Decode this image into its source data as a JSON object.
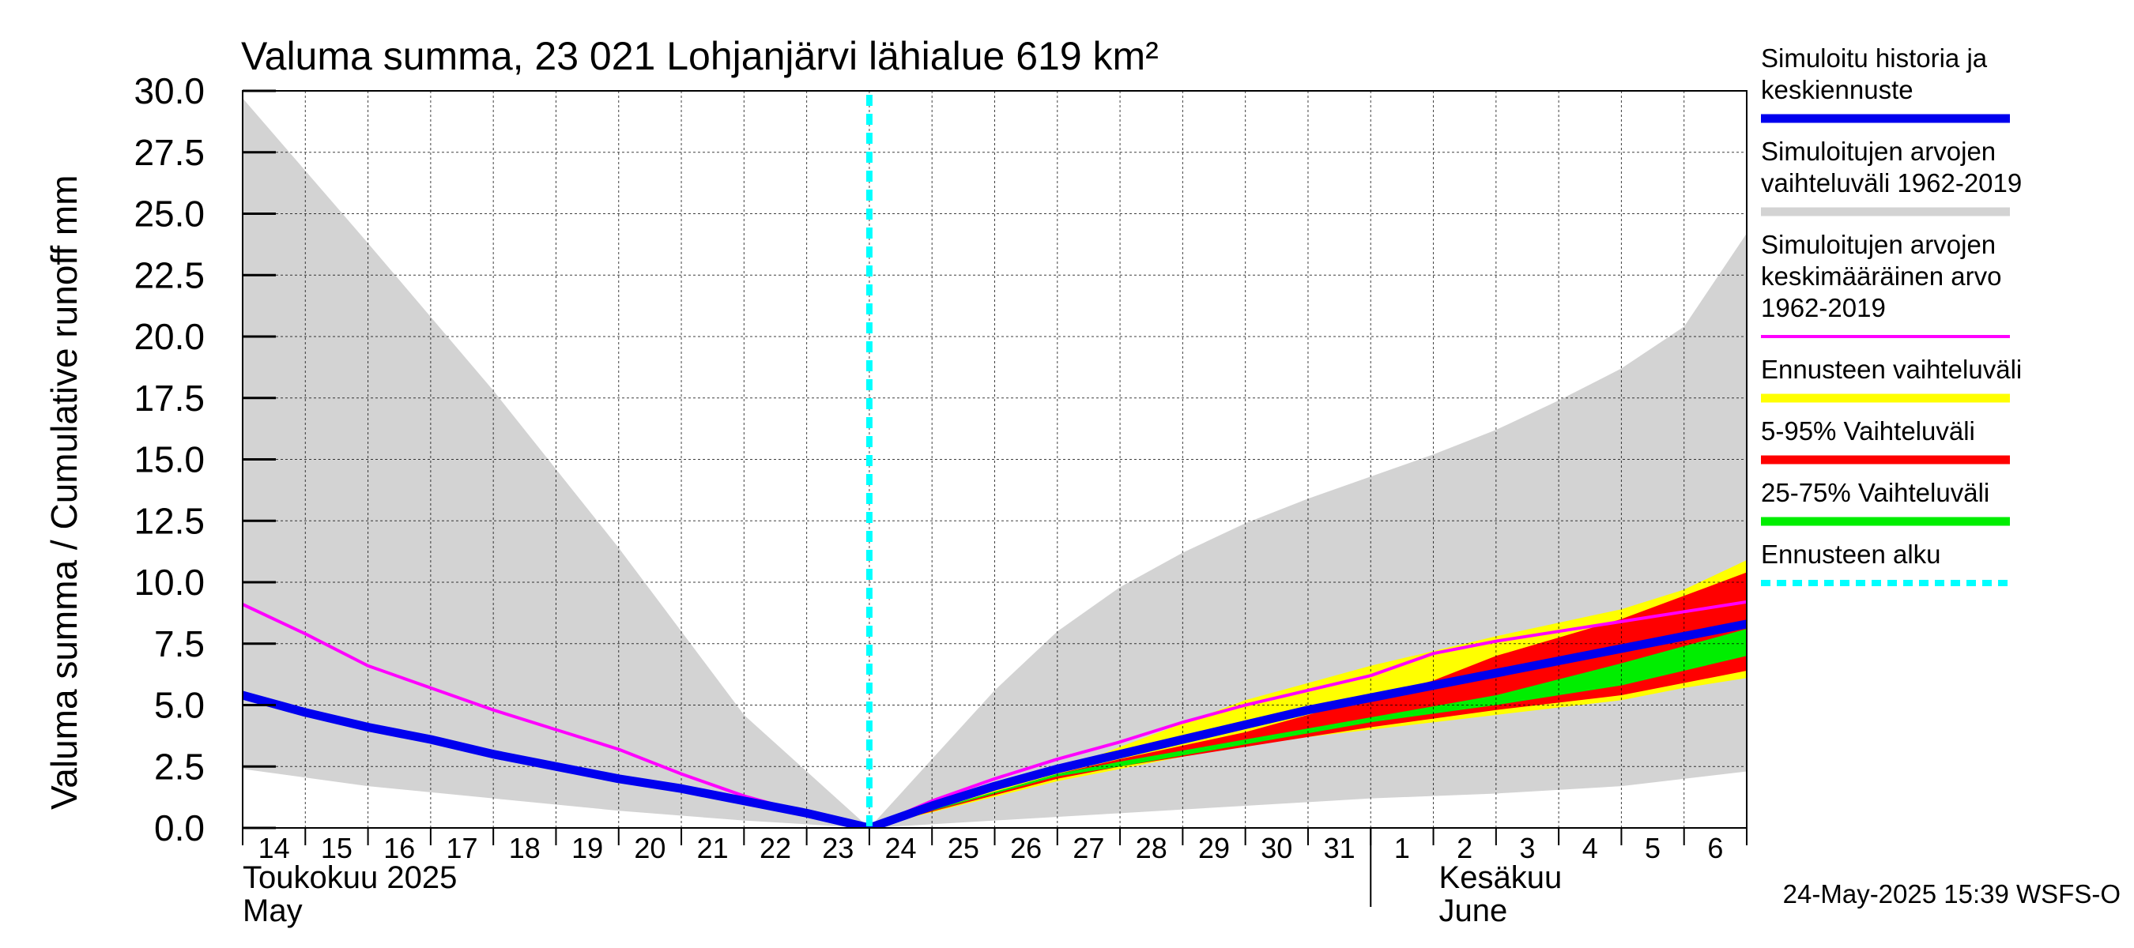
{
  "chart_data": {
    "type": "line",
    "title": "Valuma summa, 23 021 Lohjanjärvi lähialue 619 km²",
    "ylabel": "Valuma summa / Cumulative runoff    mm",
    "ylim": [
      0,
      30
    ],
    "yticks": [
      "0.0",
      "2.5",
      "5.0",
      "7.5",
      "10.0",
      "12.5",
      "15.0",
      "17.5",
      "20.0",
      "22.5",
      "25.0",
      "27.5",
      "30.0"
    ],
    "x_days": [
      "14",
      "15",
      "16",
      "17",
      "18",
      "19",
      "20",
      "21",
      "22",
      "23",
      "24",
      "25",
      "26",
      "27",
      "28",
      "29",
      "30",
      "31",
      "1",
      "2",
      "3",
      "4",
      "5",
      "6"
    ],
    "x_range": [
      0,
      24
    ],
    "month_labels": {
      "may_fi": "Toukokuu  2025",
      "may_en": "May",
      "june_fi": "Kesäkuu",
      "june_en": "June"
    },
    "forecast_start_x": 10,
    "series": [
      {
        "name": "Simuloitujen arvojen vaihteluväli 1962-2019",
        "color": "#d3d3d3",
        "upper": [
          [
            0,
            29.7
          ],
          [
            2,
            23.8
          ],
          [
            4,
            17.8
          ],
          [
            6,
            11.4
          ],
          [
            8,
            4.6
          ],
          [
            10,
            0
          ],
          [
            11,
            2.8
          ],
          [
            12,
            5.6
          ],
          [
            13,
            8.0
          ],
          [
            14,
            9.8
          ],
          [
            15,
            11.2
          ],
          [
            16,
            12.4
          ],
          [
            17,
            13.4
          ],
          [
            18,
            14.3
          ],
          [
            19,
            15.2
          ],
          [
            20,
            16.2
          ],
          [
            21,
            17.4
          ],
          [
            22,
            18.7
          ],
          [
            23,
            20.4
          ],
          [
            24,
            24.2
          ]
        ],
        "lower": [
          [
            0,
            2.4
          ],
          [
            2,
            1.7
          ],
          [
            4,
            1.2
          ],
          [
            6,
            0.7
          ],
          [
            8,
            0.3
          ],
          [
            10,
            0
          ],
          [
            12,
            0.3
          ],
          [
            14,
            0.6
          ],
          [
            16,
            0.9
          ],
          [
            18,
            1.2
          ],
          [
            20,
            1.4
          ],
          [
            22,
            1.7
          ],
          [
            24,
            2.3
          ]
        ]
      },
      {
        "name": "Ennusteen vaihteluväli",
        "color": "#ffff00",
        "upper": [
          [
            10,
            0
          ],
          [
            13,
            2.3
          ],
          [
            14,
            3.3
          ],
          [
            16,
            5.2
          ],
          [
            18,
            6.6
          ],
          [
            20,
            7.8
          ],
          [
            22,
            8.9
          ],
          [
            23,
            9.7
          ],
          [
            24,
            10.9
          ]
        ],
        "lower": [
          [
            10,
            0
          ],
          [
            13,
            1.9
          ],
          [
            14,
            2.4
          ],
          [
            16,
            3.4
          ],
          [
            18,
            4.0
          ],
          [
            20,
            4.6
          ],
          [
            22,
            5.2
          ],
          [
            23,
            5.7
          ],
          [
            24,
            6.1
          ]
        ]
      },
      {
        "name": "5-95% Vaihteluväli",
        "color": "#ff0000",
        "upper": [
          [
            10,
            0
          ],
          [
            13,
            2.2
          ],
          [
            14,
            2.8
          ],
          [
            16,
            3.9
          ],
          [
            18,
            5.3
          ],
          [
            19,
            6.0
          ],
          [
            20,
            7.0
          ],
          [
            22,
            8.5
          ],
          [
            24,
            10.4
          ]
        ],
        "lower": [
          [
            10,
            0
          ],
          [
            13,
            2.0
          ],
          [
            14,
            2.5
          ],
          [
            16,
            3.3
          ],
          [
            18,
            4.1
          ],
          [
            20,
            4.8
          ],
          [
            22,
            5.4
          ],
          [
            24,
            6.4
          ]
        ]
      },
      {
        "name": "25-75% Vaihteluväli",
        "color": "#00ee00",
        "upper": [
          [
            10,
            0
          ],
          [
            13,
            2.2
          ],
          [
            14,
            2.7
          ],
          [
            16,
            3.6
          ],
          [
            18,
            4.5
          ],
          [
            20,
            5.4
          ],
          [
            22,
            6.7
          ],
          [
            24,
            8.1
          ]
        ],
        "lower": [
          [
            10,
            0
          ],
          [
            13,
            2.1
          ],
          [
            14,
            2.5
          ],
          [
            16,
            3.4
          ],
          [
            18,
            4.3
          ],
          [
            20,
            5.0
          ],
          [
            22,
            5.8
          ],
          [
            24,
            7.0
          ]
        ]
      },
      {
        "name": "Simuloitujen arvojen keskimääräinen arvo 1962-2019",
        "color": "#ff00ff",
        "points": [
          [
            0,
            9.1
          ],
          [
            1,
            7.9
          ],
          [
            2,
            6.6
          ],
          [
            3,
            5.7
          ],
          [
            4,
            4.8
          ],
          [
            5,
            4.0
          ],
          [
            6,
            3.2
          ],
          [
            7,
            2.2
          ],
          [
            8,
            1.3
          ],
          [
            9,
            0.6
          ],
          [
            10,
            0
          ],
          [
            11,
            1.1
          ],
          [
            12,
            2.0
          ],
          [
            13,
            2.8
          ],
          [
            14,
            3.5
          ],
          [
            15,
            4.3
          ],
          [
            16,
            5.0
          ],
          [
            17,
            5.6
          ],
          [
            18,
            6.2
          ],
          [
            19,
            7.1
          ],
          [
            20,
            7.6
          ],
          [
            21,
            8.0
          ],
          [
            22,
            8.4
          ],
          [
            23,
            8.8
          ],
          [
            24,
            9.2
          ]
        ]
      },
      {
        "name": "Simuloitu historia ja keskiennuste",
        "color": "#0000ee",
        "points": [
          [
            0,
            5.4
          ],
          [
            1,
            4.7
          ],
          [
            2,
            4.1
          ],
          [
            3,
            3.6
          ],
          [
            4,
            3.0
          ],
          [
            5,
            2.5
          ],
          [
            6,
            2.0
          ],
          [
            7,
            1.6
          ],
          [
            8,
            1.1
          ],
          [
            9,
            0.6
          ],
          [
            10,
            0
          ],
          [
            11,
            0.9
          ],
          [
            12,
            1.7
          ],
          [
            13,
            2.4
          ],
          [
            14,
            3.0
          ],
          [
            15,
            3.6
          ],
          [
            16,
            4.2
          ],
          [
            17,
            4.8
          ],
          [
            18,
            5.3
          ],
          [
            19,
            5.8
          ],
          [
            20,
            6.3
          ],
          [
            21,
            6.8
          ],
          [
            22,
            7.3
          ],
          [
            23,
            7.8
          ],
          [
            24,
            8.3
          ]
        ]
      }
    ],
    "legend": [
      {
        "lines": [
          "Simuloitu historia ja",
          "keskiennuste"
        ],
        "color": "#0000ee",
        "style": "solid"
      },
      {
        "lines": [
          "Simuloitujen arvojen",
          "vaihteluväli 1962-2019"
        ],
        "color": "#d3d3d3",
        "style": "solid"
      },
      {
        "lines": [
          "Simuloitujen arvojen",
          "keskimääräinen arvo",
          "   1962-2019"
        ],
        "color": "#ff00ff",
        "style": "thin"
      },
      {
        "lines": [
          "Ennusteen vaihteluväli"
        ],
        "color": "#ffff00",
        "style": "solid"
      },
      {
        "lines": [
          "5-95% Vaihteluväli"
        ],
        "color": "#ff0000",
        "style": "solid"
      },
      {
        "lines": [
          "25-75% Vaihteluväli"
        ],
        "color": "#00ee00",
        "style": "solid"
      },
      {
        "lines": [
          "Ennusteen alku"
        ],
        "color": "#00ffff",
        "style": "dashed"
      }
    ],
    "footer": "24-May-2025 15:39 WSFS-O"
  }
}
